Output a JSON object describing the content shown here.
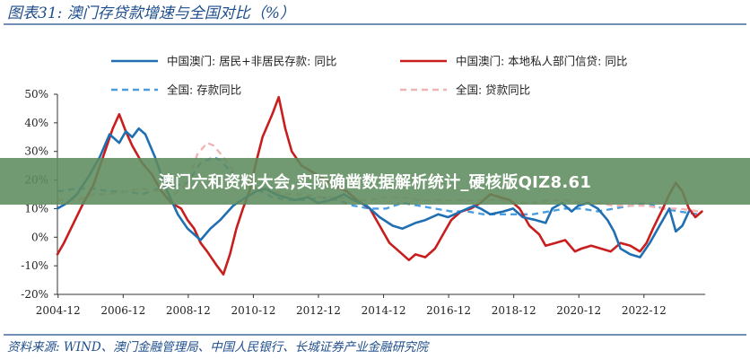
{
  "colors": {
    "accent": "#1f4e8c",
    "series1": "#1f6fb2",
    "series2": "#c81e1e",
    "series3": "#4a9ee0",
    "series4": "#f0b4b4",
    "banner": "#5f8c5f"
  },
  "banner": {
    "text": "澳门六和资料大会,实际确凿数据解析统计_硬核版QIZ8.61"
  },
  "chart_data": {
    "type": "line",
    "title": "图表31:  澳门存贷款增速与全国对比（%）",
    "source": "资料来源:  WIND、澳门金融管理局、中国人民银行、长城证券产业金融研究院",
    "xlabel": "",
    "ylabel": "",
    "x_ticks": [
      "2004-12",
      "2006-12",
      "2008-12",
      "2010-12",
      "2012-12",
      "2014-12",
      "2016-12",
      "2018-12",
      "2020-12",
      "2022-12"
    ],
    "y_ticks": [
      "50%",
      "40%",
      "30%",
      "20%",
      "10%",
      "0%",
      "-10%",
      "-20%"
    ],
    "ylim": [
      -20,
      50
    ],
    "xlim": [
      2004.9,
      2024.8
    ],
    "legend_position": "top",
    "series": [
      {
        "name": "中国澳门: 居民+非居民存款: 同比",
        "color": "#1f6fb2",
        "dash": "solid",
        "points": [
          [
            2004.9,
            10
          ],
          [
            2005.2,
            12
          ],
          [
            2005.5,
            15
          ],
          [
            2005.9,
            22
          ],
          [
            2006.2,
            28
          ],
          [
            2006.5,
            36
          ],
          [
            2006.8,
            33
          ],
          [
            2007.0,
            37
          ],
          [
            2007.2,
            35
          ],
          [
            2007.4,
            38
          ],
          [
            2007.6,
            36
          ],
          [
            2007.9,
            28
          ],
          [
            2008.2,
            18
          ],
          [
            2008.6,
            8
          ],
          [
            2008.9,
            3
          ],
          [
            2009.1,
            1
          ],
          [
            2009.3,
            -1
          ],
          [
            2009.6,
            3
          ],
          [
            2009.9,
            6
          ],
          [
            2010.3,
            11
          ],
          [
            2010.7,
            14
          ],
          [
            2011.0,
            16
          ],
          [
            2011.3,
            17
          ],
          [
            2011.6,
            15
          ],
          [
            2011.9,
            14
          ],
          [
            2012.2,
            13
          ],
          [
            2012.6,
            14
          ],
          [
            2012.9,
            12
          ],
          [
            2013.3,
            13
          ],
          [
            2013.7,
            15
          ],
          [
            2014.0,
            13
          ],
          [
            2014.4,
            11
          ],
          [
            2014.8,
            7
          ],
          [
            2015.2,
            4
          ],
          [
            2015.5,
            3
          ],
          [
            2015.9,
            5
          ],
          [
            2016.2,
            6
          ],
          [
            2016.6,
            8
          ],
          [
            2016.9,
            7
          ],
          [
            2017.3,
            9
          ],
          [
            2017.7,
            11
          ],
          [
            2017.9,
            10
          ],
          [
            2018.2,
            8
          ],
          [
            2018.6,
            9
          ],
          [
            2018.9,
            10
          ],
          [
            2019.2,
            7
          ],
          [
            2019.6,
            6
          ],
          [
            2019.9,
            5
          ],
          [
            2020.1,
            10
          ],
          [
            2020.4,
            12
          ],
          [
            2020.7,
            9
          ],
          [
            2020.9,
            11
          ],
          [
            2021.2,
            12
          ],
          [
            2021.5,
            10
          ],
          [
            2021.8,
            6
          ],
          [
            2022.0,
            2
          ],
          [
            2022.2,
            -4
          ],
          [
            2022.5,
            -6
          ],
          [
            2022.8,
            -7
          ],
          [
            2023.1,
            -2
          ],
          [
            2023.4,
            4
          ],
          [
            2023.7,
            10
          ],
          [
            2023.9,
            2
          ],
          [
            2024.1,
            4
          ],
          [
            2024.3,
            9
          ]
        ]
      },
      {
        "name": "中国澳门: 本地私人部门信贷: 同比",
        "color": "#c81e1e",
        "dash": "solid",
        "points": [
          [
            2004.9,
            -6
          ],
          [
            2005.1,
            -2
          ],
          [
            2005.4,
            5
          ],
          [
            2005.7,
            12
          ],
          [
            2006.0,
            18
          ],
          [
            2006.3,
            28
          ],
          [
            2006.6,
            38
          ],
          [
            2006.8,
            43
          ],
          [
            2007.0,
            37
          ],
          [
            2007.2,
            32
          ],
          [
            2007.5,
            26
          ],
          [
            2007.8,
            22
          ],
          [
            2008.1,
            16
          ],
          [
            2008.4,
            12
          ],
          [
            2008.7,
            10
          ],
          [
            2008.9,
            6
          ],
          [
            2009.1,
            3
          ],
          [
            2009.3,
            -2
          ],
          [
            2009.5,
            -5
          ],
          [
            2009.8,
            -10
          ],
          [
            2010.0,
            -13
          ],
          [
            2010.2,
            -6
          ],
          [
            2010.4,
            3
          ],
          [
            2010.6,
            10
          ],
          [
            2010.8,
            16
          ],
          [
            2011.0,
            26
          ],
          [
            2011.2,
            35
          ],
          [
            2011.5,
            43
          ],
          [
            2011.7,
            49
          ],
          [
            2011.9,
            38
          ],
          [
            2012.1,
            30
          ],
          [
            2012.4,
            25
          ],
          [
            2012.7,
            23
          ],
          [
            2013.0,
            21
          ],
          [
            2013.4,
            18
          ],
          [
            2013.8,
            16
          ],
          [
            2014.1,
            13
          ],
          [
            2014.5,
            10
          ],
          [
            2014.8,
            4
          ],
          [
            2015.1,
            -2
          ],
          [
            2015.4,
            -5
          ],
          [
            2015.7,
            -8
          ],
          [
            2015.9,
            -6
          ],
          [
            2016.2,
            -7
          ],
          [
            2016.5,
            -4
          ],
          [
            2016.8,
            2
          ],
          [
            2017.0,
            6
          ],
          [
            2017.3,
            9
          ],
          [
            2017.6,
            10
          ],
          [
            2017.9,
            12
          ],
          [
            2018.2,
            15
          ],
          [
            2018.5,
            14
          ],
          [
            2018.8,
            13
          ],
          [
            2019.1,
            10
          ],
          [
            2019.4,
            4
          ],
          [
            2019.7,
            1
          ],
          [
            2019.9,
            -3
          ],
          [
            2020.2,
            -2
          ],
          [
            2020.5,
            -1
          ],
          [
            2020.8,
            -5
          ],
          [
            2021.0,
            -4
          ],
          [
            2021.3,
            -3
          ],
          [
            2021.6,
            -4
          ],
          [
            2021.9,
            -5
          ],
          [
            2022.2,
            -2
          ],
          [
            2022.5,
            -3
          ],
          [
            2022.8,
            -5
          ],
          [
            2023.0,
            -2
          ],
          [
            2023.2,
            3
          ],
          [
            2023.5,
            10
          ],
          [
            2023.7,
            15
          ],
          [
            2023.9,
            19
          ],
          [
            2024.1,
            16
          ],
          [
            2024.3,
            10
          ],
          [
            2024.5,
            7
          ],
          [
            2024.7,
            9
          ]
        ]
      },
      {
        "name": "全国: 存款同比",
        "color": "#4a9ee0",
        "dash": "dashed",
        "points": [
          [
            2004.9,
            16
          ],
          [
            2005.5,
            17
          ],
          [
            2006.0,
            17
          ],
          [
            2006.5,
            16
          ],
          [
            2007.0,
            16
          ],
          [
            2007.5,
            15
          ],
          [
            2008.0,
            17
          ],
          [
            2008.5,
            18
          ],
          [
            2008.9,
            19
          ],
          [
            2009.3,
            26
          ],
          [
            2009.7,
            28
          ],
          [
            2009.9,
            27
          ],
          [
            2010.3,
            22
          ],
          [
            2010.7,
            19
          ],
          [
            2011.0,
            17
          ],
          [
            2011.5,
            14
          ],
          [
            2012.0,
            13
          ],
          [
            2012.5,
            13
          ],
          [
            2013.0,
            14
          ],
          [
            2013.5,
            13
          ],
          [
            2014.0,
            11
          ],
          [
            2014.5,
            10
          ],
          [
            2015.0,
            10
          ],
          [
            2015.5,
            12
          ],
          [
            2016.0,
            11
          ],
          [
            2016.5,
            10
          ],
          [
            2017.0,
            9
          ],
          [
            2017.5,
            9
          ],
          [
            2018.0,
            8
          ],
          [
            2018.5,
            8
          ],
          [
            2019.0,
            8
          ],
          [
            2019.5,
            8
          ],
          [
            2020.0,
            9
          ],
          [
            2020.5,
            10
          ],
          [
            2021.0,
            10
          ],
          [
            2021.5,
            9
          ],
          [
            2022.0,
            10
          ],
          [
            2022.5,
            11
          ],
          [
            2023.0,
            12
          ],
          [
            2023.5,
            10
          ],
          [
            2024.0,
            9
          ],
          [
            2024.6,
            8
          ]
        ]
      },
      {
        "name": "全国: 贷款同比",
        "color": "#f0b4b4",
        "dash": "dashed",
        "points": [
          [
            2004.9,
            13
          ],
          [
            2005.5,
            13
          ],
          [
            2006.0,
            15
          ],
          [
            2006.5,
            15
          ],
          [
            2007.0,
            16
          ],
          [
            2007.5,
            17
          ],
          [
            2008.0,
            16
          ],
          [
            2008.5,
            15
          ],
          [
            2008.9,
            19
          ],
          [
            2009.2,
            29
          ],
          [
            2009.5,
            33
          ],
          [
            2009.7,
            32
          ],
          [
            2010.0,
            28
          ],
          [
            2010.5,
            20
          ],
          [
            2011.0,
            17
          ],
          [
            2011.5,
            16
          ],
          [
            2012.0,
            15
          ],
          [
            2012.5,
            15
          ],
          [
            2013.0,
            14
          ],
          [
            2013.5,
            14
          ],
          [
            2014.0,
            13
          ],
          [
            2014.5,
            13
          ],
          [
            2015.0,
            14
          ],
          [
            2015.5,
            14
          ],
          [
            2016.0,
            13
          ],
          [
            2016.5,
            13
          ],
          [
            2017.0,
            13
          ],
          [
            2017.5,
            13
          ],
          [
            2018.0,
            13
          ],
          [
            2018.5,
            13
          ],
          [
            2019.0,
            12
          ],
          [
            2019.5,
            12
          ],
          [
            2020.0,
            13
          ],
          [
            2020.5,
            13
          ],
          [
            2021.0,
            12
          ],
          [
            2021.5,
            12
          ],
          [
            2022.0,
            11
          ],
          [
            2022.5,
            11
          ],
          [
            2023.0,
            11
          ],
          [
            2023.5,
            10
          ],
          [
            2024.0,
            10
          ],
          [
            2024.6,
            9
          ]
        ]
      }
    ]
  }
}
